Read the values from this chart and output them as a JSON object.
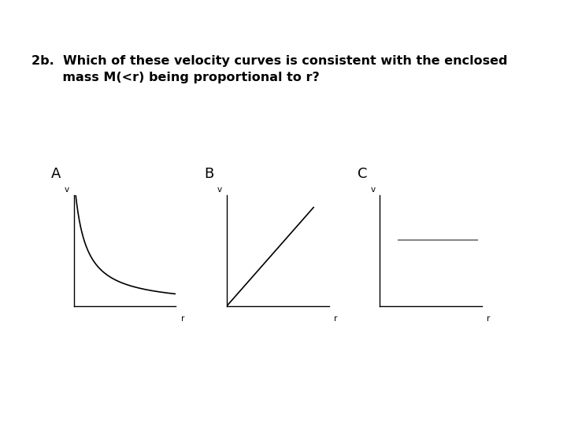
{
  "title_text": "2b.  Which of these velocity curves is consistent with the enclosed\n       mass M(<r) being proportional to r?",
  "label_A": "A",
  "label_B": "B",
  "label_C": "C",
  "axis_label_v": "v",
  "axis_label_r": "r",
  "background_color": "#ffffff",
  "text_color": "#000000",
  "curve_color": "#000000",
  "axes_color": "#000000",
  "flat_line_color": "#888888",
  "font_size_title": 11.5,
  "font_size_labels": 12,
  "font_size_axis": 7.5
}
